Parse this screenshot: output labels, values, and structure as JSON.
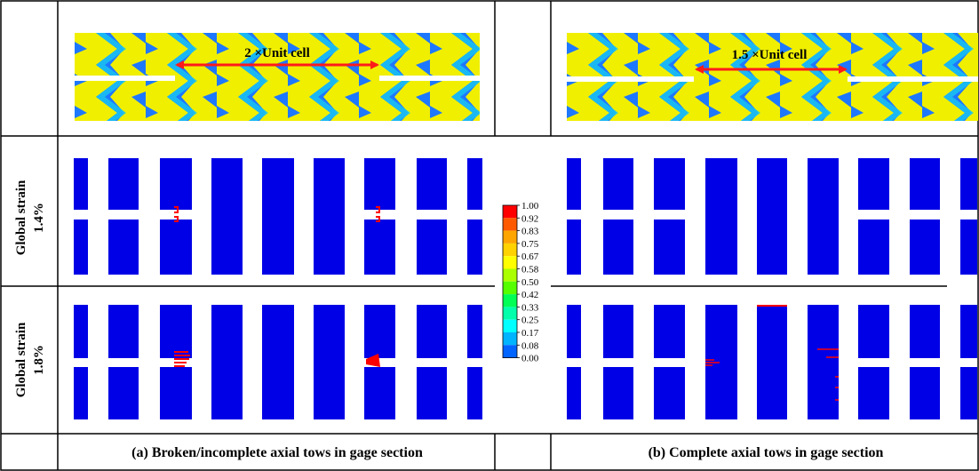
{
  "row_labels": {
    "row1": {
      "line1": "Global strain",
      "line2": "1.4%"
    },
    "row2": {
      "line1": "Global strain",
      "line2": "1.8%"
    }
  },
  "weave_annotations": {
    "left": "2 ×Unit cell",
    "right": "1.5 ×Unit cell"
  },
  "captions": {
    "left": "(a) Broken/incomplete axial tows in gage section",
    "right": "(b) Complete axial tows in gage section"
  },
  "legend": {
    "values": [
      "1.00",
      "0.92",
      "0.83",
      "0.75",
      "0.67",
      "0.58",
      "0.50",
      "0.42",
      "0.33",
      "0.25",
      "0.17",
      "0.08",
      "0.00"
    ],
    "colors": [
      "#ff0000",
      "#ff5a00",
      "#ffa500",
      "#ffd200",
      "#ffff00",
      "#aaff00",
      "#55ff00",
      "#00ff55",
      "#00ffaa",
      "#00ffff",
      "#00b4ff",
      "#0064ff",
      "#0000ff"
    ]
  },
  "colors": {
    "tow_blue": "#0000e6",
    "weave_yellow": "#f0ef00",
    "weave_blue": "#1e78ff",
    "weave_cyan": "#18c8f0",
    "damage_red": "#ff0000",
    "annotation_red": "#ff1a1a"
  }
}
